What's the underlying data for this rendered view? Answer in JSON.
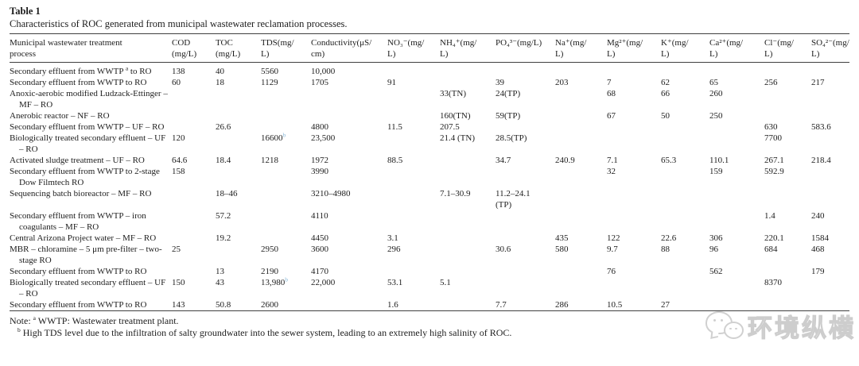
{
  "table": {
    "label": "Table 1",
    "caption": "Characteristics of ROC generated from municipal wastewater reclamation processes.",
    "columns": [
      "Municipal wastewater treatment\nprocess",
      "COD\n(mg/L)",
      "TOC\n(mg/L)",
      "TDS(mg/\nL)",
      "Conductivity(μS/\ncm)",
      "NO₃⁻(mg/\nL)",
      "NH₄⁺(mg/\nL)",
      "PO₄³⁻(mg/L)",
      "Na⁺(mg/\nL)",
      "Mg²⁺(mg/\nL)",
      "K⁺(mg/\nL)",
      "Ca²⁺(mg/\nL)",
      "Cl⁻(mg/\nL)",
      "SO₄²⁻(mg/\nL)"
    ],
    "rows": [
      [
        "Secondary effluent from WWTP ^a to RO",
        "138",
        "40",
        "5560",
        "10,000",
        "",
        "",
        "",
        "",
        "",
        "",
        "",
        "",
        ""
      ],
      [
        "Secondary effluent from WWTP to RO",
        "60",
        "18",
        "1129",
        "1705",
        "91",
        "",
        "39",
        "203",
        "7",
        "62",
        "65",
        "256",
        "217"
      ],
      [
        "Anoxic-aerobic modified Ludzack-Ettinger – MF – RO",
        "",
        "",
        "",
        "",
        "",
        "33(TN)",
        "24(TP)",
        "",
        "68",
        "66",
        "260",
        "",
        ""
      ],
      [
        "Anerobic reactor – NF – RO",
        "",
        "",
        "",
        "",
        "",
        "160(TN)",
        "59(TP)",
        "",
        "67",
        "50",
        "250",
        "",
        ""
      ],
      [
        "Secondary effluent from WWTP – UF – RO",
        "",
        "26.6",
        "",
        "4800",
        "11.5",
        "207.5",
        "",
        "",
        "",
        "",
        "",
        "630",
        "583.6"
      ],
      [
        "Biologically treated secondary effluent – UF – RO",
        "120",
        "",
        "16600^B",
        "23,500",
        "",
        "21.4 (TN)",
        "28.5(TP)",
        "",
        "",
        "",
        "",
        "7700",
        ""
      ],
      [
        "Activated sludge treatment – UF – RO",
        "64.6",
        "18.4",
        "1218",
        "1972",
        "88.5",
        "",
        "34.7",
        "240.9",
        "7.1",
        "65.3",
        "110.1",
        "267.1",
        "218.4"
      ],
      [
        "Secondary effluent from WWTP to 2-stage Dow Filmtech RO",
        "158",
        "",
        "",
        "3990",
        "",
        "",
        "",
        "",
        "32",
        "",
        "159",
        "592.9",
        ""
      ],
      [
        "Sequencing batch bioreactor – MF – RO",
        "",
        "18–46",
        "",
        "3210–4980",
        "",
        "7.1–30.9",
        "11.2–24.1\n(TP)",
        "",
        "",
        "",
        "",
        "",
        ""
      ],
      [
        "Secondary effluent from WWTP – iron coagulants – MF – RO",
        "",
        "57.2",
        "",
        "4110",
        "",
        "",
        "",
        "",
        "",
        "",
        "",
        "1.4",
        "240"
      ],
      [
        "Central Arizona Project water – MF – RO",
        "",
        "19.2",
        "",
        "4450",
        "3.1",
        "",
        "",
        "435",
        "122",
        "22.6",
        "306",
        "220.1",
        "1584"
      ],
      [
        "MBR – chloramine – 5 μm pre-filter – two-stage RO",
        "25",
        "",
        "2950",
        "3600",
        "296",
        "",
        "30.6",
        "580",
        "9.7",
        "88",
        "96",
        "684",
        "468"
      ],
      [
        "Secondary effluent from WWTP to RO",
        "",
        "13",
        "2190",
        "4170",
        "",
        "",
        "",
        "",
        "76",
        "",
        "562",
        "",
        "179"
      ],
      [
        "Biologically treated secondary effluent – UF – RO",
        "150",
        "43",
        "13,980^B",
        "22,000",
        "53.1",
        "5.1",
        "",
        "",
        "",
        "",
        "",
        "8370",
        ""
      ],
      [
        "Secondary effluent from WWTP to RO",
        "143",
        "50.8",
        "2600",
        "",
        "1.6",
        "",
        "7.7",
        "286",
        "10.5",
        "27",
        "",
        "",
        ""
      ]
    ],
    "notes": [
      "Note: ^a WWTP: Wastewater treatment plant.",
      "^b High TDS level due to the infiltration of salty groundwater into the sewer system, leading to an extremely high salinity of ROC."
    ]
  },
  "watermark": {
    "text": "环境纵横",
    "icon": "wechat-logo"
  },
  "colors": {
    "text": "#1d1d1d",
    "rule": "#3f3f3f",
    "footnote_link": "#85b7d8",
    "watermark": "#cccccc",
    "background": "#ffffff"
  }
}
